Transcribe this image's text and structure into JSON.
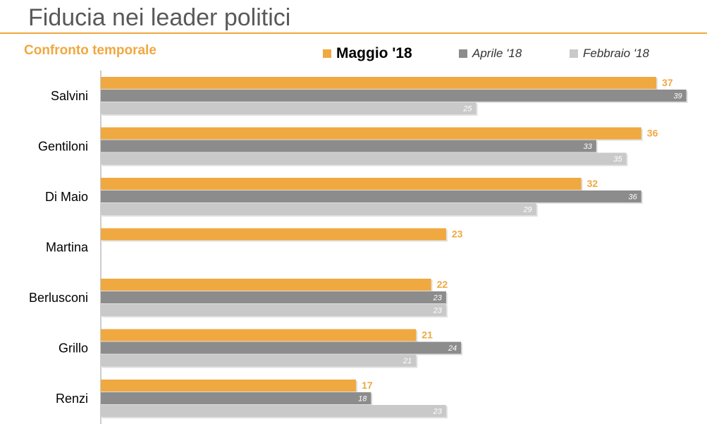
{
  "header": {
    "title": "Fiducia nei leader politici",
    "subtitle": "Confronto temporale"
  },
  "colors": {
    "accent": "#f0a840",
    "series_1": "#f0a840",
    "series_2": "#8c8c8c",
    "series_3": "#c9c9c9",
    "title_text": "#595959"
  },
  "chart_data": {
    "type": "bar",
    "orientation": "horizontal",
    "title": "Fiducia nei leader politici",
    "subtitle": "Confronto temporale",
    "legend_position": "top",
    "grid": false,
    "xlim": [
      0,
      40
    ],
    "categories": [
      "Salvini",
      "Gentiloni",
      "Di Maio",
      "Martina",
      "Berlusconi",
      "Grillo",
      "Renzi"
    ],
    "series": [
      {
        "name": "Maggio '18",
        "values": [
          37,
          36,
          32,
          23,
          22,
          21,
          17
        ]
      },
      {
        "name": "Aprile '18",
        "values": [
          39,
          33,
          36,
          null,
          23,
          24,
          18
        ]
      },
      {
        "name": "Febbraio '18",
        "values": [
          25,
          35,
          29,
          null,
          23,
          21,
          23
        ]
      }
    ]
  }
}
